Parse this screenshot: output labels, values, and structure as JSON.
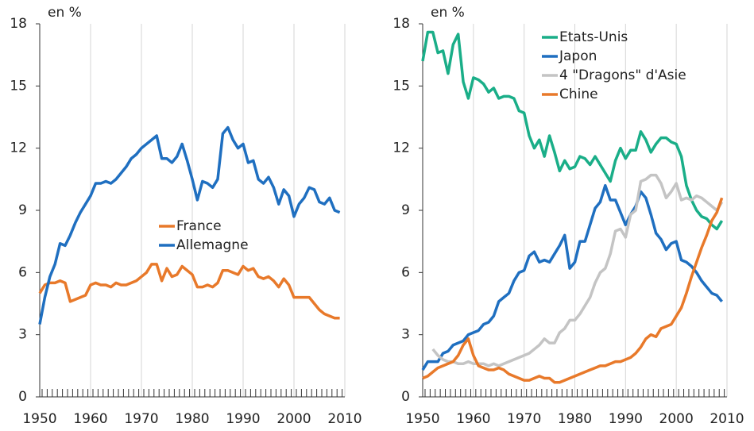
{
  "chart_data": [
    {
      "type": "line",
      "y_label": "en %",
      "x": [
        1950,
        1951,
        1952,
        1953,
        1954,
        1955,
        1956,
        1957,
        1958,
        1959,
        1960,
        1961,
        1962,
        1963,
        1964,
        1965,
        1966,
        1967,
        1968,
        1969,
        1970,
        1971,
        1972,
        1973,
        1974,
        1975,
        1976,
        1977,
        1978,
        1979,
        1980,
        1981,
        1982,
        1983,
        1984,
        1985,
        1986,
        1987,
        1988,
        1989,
        1990,
        1991,
        1992,
        1993,
        1994,
        1995,
        1996,
        1997,
        1998,
        1999,
        2000,
        2001,
        2002,
        2003,
        2004,
        2005,
        2006,
        2007,
        2008,
        2009
      ],
      "xlim": [
        1950,
        2010
      ],
      "xticks": [
        1950,
        1960,
        1970,
        1980,
        1990,
        2000,
        2010
      ],
      "ylim": [
        0,
        18
      ],
      "yticks": [
        0,
        3,
        6,
        9,
        12,
        15,
        18
      ],
      "grid": true,
      "legend": "center",
      "series": [
        {
          "name": "France",
          "color": "#e8792a",
          "values": [
            5.0,
            5.4,
            5.5,
            5.5,
            5.6,
            5.5,
            4.6,
            4.7,
            4.8,
            4.9,
            5.4,
            5.5,
            5.4,
            5.4,
            5.3,
            5.5,
            5.4,
            5.4,
            5.5,
            5.6,
            5.8,
            6.0,
            6.4,
            6.4,
            5.6,
            6.2,
            5.8,
            5.9,
            6.3,
            6.1,
            5.9,
            5.3,
            5.3,
            5.4,
            5.3,
            5.5,
            6.1,
            6.1,
            6.0,
            5.9,
            6.3,
            6.1,
            6.2,
            5.8,
            5.7,
            5.8,
            5.6,
            5.3,
            5.7,
            5.4,
            4.8,
            4.8,
            4.8,
            4.8,
            4.5,
            4.2,
            4.0,
            3.9,
            3.8,
            3.8
          ]
        },
        {
          "name": "Allemagne",
          "color": "#1f6fc0",
          "values": [
            3.5,
            4.8,
            5.8,
            6.4,
            7.4,
            7.3,
            7.8,
            8.4,
            8.9,
            9.3,
            9.7,
            10.3,
            10.3,
            10.4,
            10.3,
            10.5,
            10.8,
            11.1,
            11.5,
            11.7,
            12.0,
            12.2,
            12.4,
            12.6,
            11.5,
            11.5,
            11.3,
            11.6,
            12.2,
            11.4,
            10.5,
            9.5,
            10.4,
            10.3,
            10.1,
            10.5,
            12.7,
            13.0,
            12.4,
            12.0,
            12.2,
            11.3,
            11.4,
            10.5,
            10.3,
            10.6,
            10.1,
            9.3,
            10.0,
            9.7,
            8.7,
            9.3,
            9.6,
            10.1,
            10.0,
            9.4,
            9.3,
            9.6,
            9.0,
            8.9
          ]
        }
      ]
    },
    {
      "type": "line",
      "y_label": "en %",
      "x": [
        1950,
        1951,
        1952,
        1953,
        1954,
        1955,
        1956,
        1957,
        1958,
        1959,
        1960,
        1961,
        1962,
        1963,
        1964,
        1965,
        1966,
        1967,
        1968,
        1969,
        1970,
        1971,
        1972,
        1973,
        1974,
        1975,
        1976,
        1977,
        1978,
        1979,
        1980,
        1981,
        1982,
        1983,
        1984,
        1985,
        1986,
        1987,
        1988,
        1989,
        1990,
        1991,
        1992,
        1993,
        1994,
        1995,
        1996,
        1997,
        1998,
        1999,
        2000,
        2001,
        2002,
        2003,
        2004,
        2005,
        2006,
        2007,
        2008,
        2009
      ],
      "xlim": [
        1950,
        2010
      ],
      "xticks": [
        1950,
        1960,
        1970,
        1980,
        1990,
        2000,
        2010
      ],
      "ylim": [
        0,
        18
      ],
      "yticks": [
        0,
        3,
        6,
        9,
        12,
        15,
        18
      ],
      "grid": true,
      "legend": "upper center",
      "series": [
        {
          "name": "Etats-Unis",
          "color": "#1aae88",
          "values": [
            16.2,
            17.6,
            17.6,
            16.6,
            16.7,
            15.6,
            17.0,
            17.5,
            15.2,
            14.4,
            15.4,
            15.3,
            15.1,
            14.7,
            14.9,
            14.4,
            14.5,
            14.5,
            14.4,
            13.8,
            13.7,
            12.6,
            12.0,
            12.4,
            11.6,
            12.6,
            11.8,
            10.9,
            11.4,
            11.0,
            11.1,
            11.6,
            11.5,
            11.2,
            11.6,
            11.2,
            10.8,
            10.4,
            11.4,
            12.0,
            11.5,
            11.9,
            11.9,
            12.8,
            12.4,
            11.8,
            12.2,
            12.5,
            12.5,
            12.3,
            12.2,
            11.6,
            10.2,
            9.5,
            9.0,
            8.7,
            8.6,
            8.3,
            8.1,
            8.5
          ]
        },
        {
          "name": "Japon",
          "color": "#1f6fc0",
          "values": [
            1.3,
            1.7,
            1.7,
            1.7,
            2.1,
            2.2,
            2.5,
            2.6,
            2.7,
            3.0,
            3.1,
            3.2,
            3.5,
            3.6,
            3.9,
            4.6,
            4.8,
            5.0,
            5.6,
            6.0,
            6.1,
            6.8,
            7.0,
            6.5,
            6.6,
            6.5,
            6.9,
            7.3,
            7.8,
            6.2,
            6.5,
            7.5,
            7.5,
            8.3,
            9.1,
            9.4,
            10.2,
            9.5,
            9.5,
            8.9,
            8.3,
            8.8,
            9.2,
            9.9,
            9.6,
            8.8,
            7.9,
            7.6,
            7.1,
            7.4,
            7.5,
            6.6,
            6.5,
            6.3,
            6.0,
            5.6,
            5.3,
            5.0,
            4.9,
            4.6
          ]
        },
        {
          "name": "4 \"Dragons\" d'Asie",
          "color": "#c4c4c4",
          "values": [
            null,
            null,
            2.3,
            2.0,
            1.8,
            1.7,
            1.7,
            1.6,
            1.6,
            1.7,
            1.6,
            1.6,
            1.6,
            1.5,
            1.6,
            1.5,
            1.6,
            1.7,
            1.8,
            1.9,
            2.0,
            2.1,
            2.3,
            2.5,
            2.8,
            2.6,
            2.6,
            3.1,
            3.3,
            3.7,
            3.7,
            4.0,
            4.4,
            4.8,
            5.5,
            6.0,
            6.2,
            6.9,
            8.0,
            8.1,
            7.7,
            8.8,
            9.0,
            10.4,
            10.5,
            10.7,
            10.7,
            10.3,
            9.6,
            9.9,
            10.3,
            9.5,
            9.6,
            9.5,
            9.7,
            9.6,
            9.4,
            9.2,
            9.0,
            9.4
          ]
        },
        {
          "name": "Chine",
          "color": "#e8792a",
          "values": [
            0.9,
            1.0,
            1.2,
            1.4,
            1.5,
            1.6,
            1.7,
            2.0,
            2.5,
            2.8,
            2.0,
            1.5,
            1.4,
            1.3,
            1.3,
            1.4,
            1.3,
            1.1,
            1.0,
            0.9,
            0.8,
            0.8,
            0.9,
            1.0,
            0.9,
            0.9,
            0.7,
            0.7,
            0.8,
            0.9,
            1.0,
            1.1,
            1.2,
            1.3,
            1.4,
            1.5,
            1.5,
            1.6,
            1.7,
            1.7,
            1.8,
            1.9,
            2.1,
            2.4,
            2.8,
            3.0,
            2.9,
            3.3,
            3.4,
            3.5,
            3.9,
            4.3,
            5.0,
            5.8,
            6.5,
            7.2,
            7.8,
            8.5,
            8.9,
            9.6
          ]
        }
      ]
    }
  ]
}
